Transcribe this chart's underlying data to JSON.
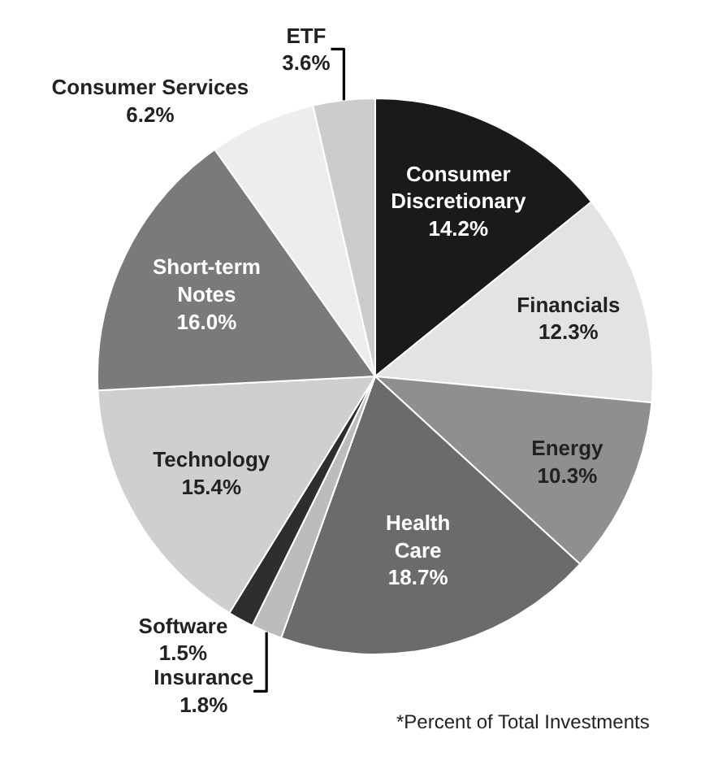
{
  "chart_data": {
    "type": "pie",
    "categories": [
      "Consumer Discretionary",
      "Financials",
      "Energy",
      "Health Care",
      "Insurance",
      "Software",
      "Technology",
      "Short-term Notes",
      "Consumer Services",
      "ETF"
    ],
    "values": [
      14.2,
      12.3,
      10.3,
      18.7,
      1.8,
      1.5,
      15.4,
      16.0,
      6.2,
      3.6
    ],
    "value_labels": [
      "14.2%",
      "12.3%",
      "10.3%",
      "18.7%",
      "1.8%",
      "1.5%",
      "15.4%",
      "16.0%",
      "6.2%",
      "3.6%"
    ],
    "colors": [
      "#1a1a1a",
      "#e3e3e3",
      "#8f8f8f",
      "#6b6b6b",
      "#bcbcbc",
      "#2e2e2e",
      "#cfcfcf",
      "#7a7a7a",
      "#ededed",
      "#cccccc"
    ],
    "annotations": [
      "*Percent of Total Investments"
    ],
    "legend": false
  }
}
